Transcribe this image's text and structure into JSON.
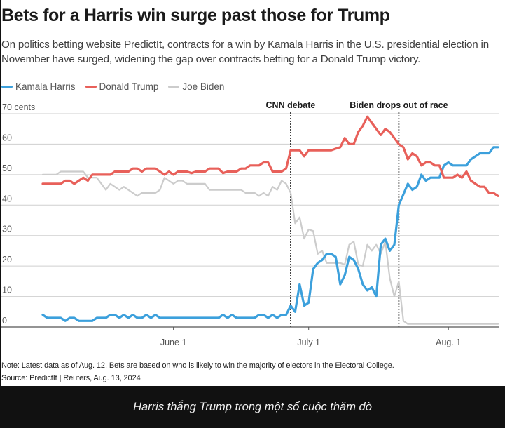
{
  "header": {
    "title": "Bets for a Harris win surge past those for Trump",
    "subtitle": "On politics betting website PredictIt, contracts for a win by Kamala Harris in the U.S. presidential election in November have surged, widening the gap over contracts betting for a Donald Trump victory."
  },
  "footer": {
    "note": "Note: Latest data as of Aug. 12. Bets are based on who is likely to win the majority of electors in the Electoral College.",
    "source": "Source: PredictIt | Reuters, Aug. 13, 2024"
  },
  "caption": "Harris thắng Trump trong một số cuộc thăm dò",
  "colors": {
    "harris": "#3ca0dc",
    "trump": "#e8605a",
    "biden": "#cccccc",
    "grid": "#cfcfcf",
    "axis": "#555555",
    "caption_bg": "#111111"
  },
  "chart_data": {
    "type": "line",
    "title": "Bets for a Harris win surge past those for Trump",
    "ylabel": "cents",
    "y_unit_label": "70 cents",
    "ylim": [
      0,
      70
    ],
    "yticks": [
      0,
      10,
      20,
      30,
      40,
      50,
      60,
      70
    ],
    "ytick_labels": [
      "0",
      "10",
      "20",
      "30",
      "40",
      "50",
      "60",
      "70 cents"
    ],
    "x_unit": "days since May 3, 2024",
    "xlim": [
      0,
      101
    ],
    "xticks": [
      29,
      59,
      90
    ],
    "xtick_labels": [
      "June 1",
      "July 1",
      "Aug. 1"
    ],
    "grid": true,
    "legend_position": "top-left",
    "annotations": [
      {
        "label": "CNN debate",
        "x": 55
      },
      {
        "label": "Biden drops out of race",
        "x": 79
      }
    ],
    "series": [
      {
        "name": "Kamala Harris",
        "key": "harris",
        "x": [
          0,
          1,
          2,
          3,
          4,
          5,
          6,
          7,
          8,
          9,
          10,
          11,
          12,
          13,
          14,
          15,
          16,
          17,
          18,
          19,
          20,
          21,
          22,
          23,
          24,
          25,
          26,
          27,
          28,
          29,
          30,
          31,
          32,
          33,
          34,
          35,
          36,
          37,
          38,
          39,
          40,
          41,
          42,
          43,
          44,
          45,
          46,
          47,
          48,
          49,
          50,
          51,
          52,
          53,
          54,
          55,
          56,
          57,
          58,
          59,
          60,
          61,
          62,
          63,
          64,
          65,
          66,
          67,
          68,
          69,
          70,
          71,
          72,
          73,
          74,
          75,
          76,
          77,
          78,
          79,
          80,
          81,
          82,
          83,
          84,
          85,
          86,
          87,
          88,
          89,
          90,
          91,
          92,
          93,
          94,
          95,
          96,
          97,
          98,
          99,
          100,
          101
        ],
        "values": [
          4,
          3,
          3,
          3,
          3,
          2,
          3,
          3,
          2,
          2,
          2,
          2,
          3,
          3,
          3,
          4,
          4,
          3,
          4,
          3,
          4,
          3,
          3,
          4,
          3,
          4,
          3,
          3,
          3,
          3,
          3,
          3,
          3,
          3,
          3,
          3,
          3,
          3,
          3,
          3,
          4,
          3,
          4,
          3,
          3,
          3,
          3,
          3,
          4,
          4,
          3,
          4,
          3,
          4,
          4,
          7,
          5,
          14,
          7,
          8,
          19,
          21,
          22,
          24,
          24,
          23,
          14,
          17,
          23,
          22,
          19,
          14,
          12,
          13,
          10,
          27,
          29,
          25,
          27,
          40,
          43.5,
          47,
          45,
          46,
          50,
          48,
          49,
          49,
          49,
          53,
          54,
          53,
          53,
          53,
          53,
          55,
          56,
          57,
          57,
          57,
          59,
          59
        ]
      },
      {
        "name": "Donald Trump",
        "key": "trump",
        "x": [
          0,
          1,
          2,
          3,
          4,
          5,
          6,
          7,
          8,
          9,
          10,
          11,
          12,
          13,
          14,
          15,
          16,
          17,
          18,
          19,
          20,
          21,
          22,
          23,
          24,
          25,
          26,
          27,
          28,
          29,
          30,
          31,
          32,
          33,
          34,
          35,
          36,
          37,
          38,
          39,
          40,
          41,
          42,
          43,
          44,
          45,
          46,
          47,
          48,
          49,
          50,
          51,
          52,
          53,
          54,
          55,
          56,
          57,
          58,
          59,
          60,
          61,
          62,
          63,
          64,
          65,
          66,
          67,
          68,
          69,
          70,
          71,
          72,
          73,
          74,
          75,
          76,
          77,
          78,
          79,
          80,
          81,
          82,
          83,
          84,
          85,
          86,
          87,
          88,
          89,
          90,
          91,
          92,
          93,
          94,
          95,
          96,
          97,
          98,
          99,
          100,
          101
        ],
        "values": [
          47,
          47,
          47,
          47,
          47,
          48,
          48,
          47,
          48,
          49,
          48,
          50,
          50,
          50,
          50,
          50,
          51,
          51,
          51,
          51,
          52,
          52,
          51,
          52,
          52,
          52,
          51,
          50,
          51,
          50,
          51,
          51,
          51,
          50.5,
          51,
          51,
          51,
          52,
          52,
          52,
          50.5,
          51,
          51,
          51,
          52,
          52,
          53,
          53,
          53,
          54,
          54,
          51,
          51,
          51,
          52,
          58,
          58,
          58,
          56,
          58,
          58,
          58,
          58,
          58,
          58,
          58.5,
          59,
          62,
          60,
          60,
          64,
          66,
          69,
          67,
          65,
          63,
          65,
          64,
          62,
          60,
          59,
          55,
          57,
          56,
          53,
          54,
          54,
          53,
          53,
          49,
          49,
          49,
          50,
          49,
          51,
          48,
          47,
          46,
          46,
          44,
          44,
          43
        ]
      },
      {
        "name": "Joe Biden",
        "key": "biden",
        "x": [
          0,
          1,
          2,
          3,
          4,
          5,
          6,
          7,
          8,
          9,
          10,
          11,
          12,
          13,
          14,
          15,
          16,
          17,
          18,
          19,
          20,
          21,
          22,
          23,
          24,
          25,
          26,
          27,
          28,
          29,
          30,
          31,
          32,
          33,
          34,
          35,
          36,
          37,
          38,
          39,
          40,
          41,
          42,
          43,
          44,
          45,
          46,
          47,
          48,
          49,
          50,
          51,
          52,
          53,
          54,
          55,
          56,
          57,
          58,
          59,
          60,
          61,
          62,
          63,
          64,
          65,
          66,
          67,
          68,
          69,
          70,
          71,
          72,
          73,
          74,
          75,
          76,
          77,
          78,
          79,
          80,
          81,
          82,
          83,
          84,
          85,
          86,
          87,
          88,
          89,
          90,
          91,
          92,
          93,
          94,
          95,
          96,
          97,
          98,
          99,
          100,
          101
        ],
        "values": [
          50,
          50,
          50,
          50,
          51,
          51,
          51,
          51,
          51,
          51,
          49,
          49,
          49,
          47,
          45,
          47,
          46,
          45,
          46,
          45,
          44,
          43,
          44,
          44,
          44,
          44,
          45,
          49,
          48,
          47,
          48,
          48,
          47,
          47,
          47,
          47,
          47,
          45,
          45,
          45,
          45,
          45,
          45,
          45,
          45,
          44,
          44,
          44,
          43,
          44,
          43,
          46,
          45,
          48,
          47,
          44,
          34,
          36,
          29,
          32,
          31.5,
          24,
          25,
          21,
          21,
          21,
          21,
          20.5,
          27,
          28,
          20.5,
          20,
          27,
          25,
          27,
          24,
          28,
          16,
          10,
          15,
          2,
          1,
          1,
          1,
          1,
          1,
          1,
          1,
          1,
          1,
          1,
          1,
          1,
          1,
          1,
          1,
          1,
          1,
          1,
          1,
          1,
          1
        ]
      }
    ],
    "legend": [
      "Kamala Harris",
      "Donald Trump",
      "Joe Biden"
    ]
  }
}
